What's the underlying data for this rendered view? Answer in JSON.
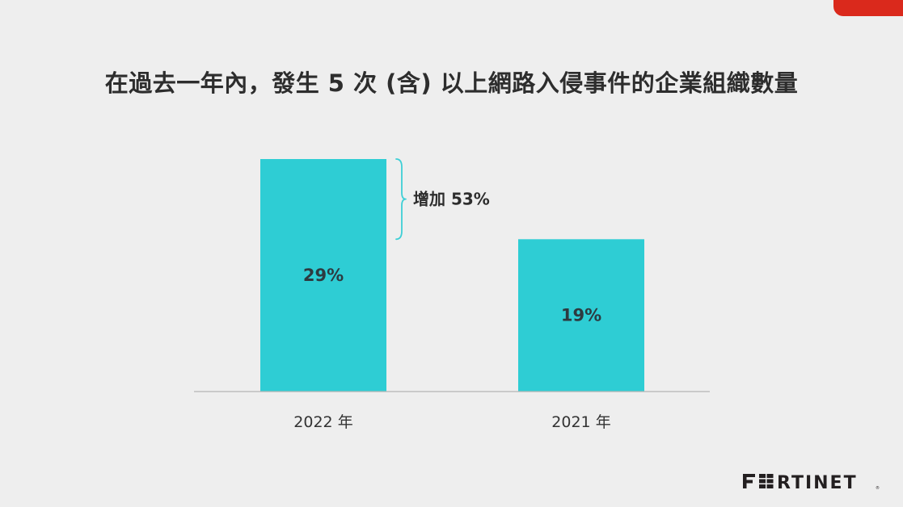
{
  "slide": {
    "title": "在過去一年內，發生 5 次 (含) 以上網路入侵事件的企業組織數量"
  },
  "colors": {
    "bar": "#2ecdd4",
    "brace": "#3ecfd6",
    "axis": "#b5b5b5",
    "accent": "#da291c",
    "logo": "#231f20"
  },
  "brand": {
    "logo_text": "FORTINET",
    "logo_icon": "fortinet-logo-icon"
  },
  "chart_data": {
    "type": "bar",
    "title": "在過去一年內，發生 5 次 (含) 以上網路入侵事件的企業組織數量",
    "categories": [
      "2022 年",
      "2021 年"
    ],
    "values": [
      29,
      19
    ],
    "value_labels": [
      "29%",
      "19%"
    ],
    "unit": "%",
    "ylim": [
      0,
      29
    ],
    "grid": false,
    "legend": "none",
    "annotation": {
      "text": "增加 53%",
      "from_category": "2022 年",
      "span_values": [
        19,
        29
      ]
    }
  }
}
